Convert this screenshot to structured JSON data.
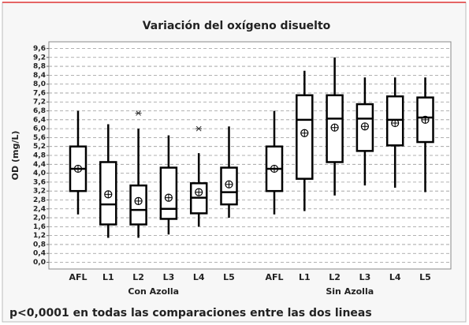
{
  "chart_data": {
    "type": "box",
    "title": "Variación del oxígeno disuelto",
    "ylabel": "OD (mg/L)",
    "footer": "p<0,0001 en todas las comparaciones entre las dos lineas",
    "ylim": [
      -0.3,
      9.9
    ],
    "yticks": [
      {
        "value": 0,
        "label": "0,0"
      },
      {
        "value": 0.4,
        "label": "0,4"
      },
      {
        "value": 0.8,
        "label": "0,8"
      },
      {
        "value": 1.2,
        "label": "1,2"
      },
      {
        "value": 1.6,
        "label": "1,6"
      },
      {
        "value": 2,
        "label": "2,0"
      },
      {
        "value": 2.4,
        "label": "2,4"
      },
      {
        "value": 2.8,
        "label": "2,8"
      },
      {
        "value": 3.2,
        "label": "3,2"
      },
      {
        "value": 3.6,
        "label": "3,6"
      },
      {
        "value": 4,
        "label": "4,0"
      },
      {
        "value": 4.4,
        "label": "4,4"
      },
      {
        "value": 4.8,
        "label": "4,8"
      },
      {
        "value": 5.2,
        "label": "5,2"
      },
      {
        "value": 5.6,
        "label": "5,6"
      },
      {
        "value": 6,
        "label": "6,0"
      },
      {
        "value": 6.4,
        "label": "6,4"
      },
      {
        "value": 6.8,
        "label": "6,8"
      },
      {
        "value": 7.2,
        "label": "7,2"
      },
      {
        "value": 7.6,
        "label": "7,6"
      },
      {
        "value": 8,
        "label": "8,0"
      },
      {
        "value": 8.4,
        "label": "8,4"
      },
      {
        "value": 8.8,
        "label": "8,8"
      },
      {
        "value": 9.2,
        "label": "9,2"
      },
      {
        "value": 9.6,
        "label": "9,6"
      }
    ],
    "grid": true,
    "color": "#000000",
    "groups": [
      {
        "name": "Con Azolla",
        "categories": [
          "AFL",
          "L1",
          "L2",
          "L3",
          "L4",
          "L5"
        ],
        "boxes": [
          {
            "whislo": 2.15,
            "q1": 3.2,
            "med": 4.2,
            "q3": 5.2,
            "whishi": 6.8,
            "mean": 4.2
          },
          {
            "whislo": 1.1,
            "q1": 1.7,
            "med": 2.6,
            "q3": 4.5,
            "whishi": 6.2,
            "mean": 3.05
          },
          {
            "whislo": 1.1,
            "q1": 1.7,
            "med": 2.35,
            "q3": 3.45,
            "whishi": 6.0,
            "mean": 2.75,
            "outliers": [
              6.7
            ]
          },
          {
            "whislo": 1.25,
            "q1": 1.95,
            "med": 2.4,
            "q3": 4.25,
            "whishi": 5.7,
            "mean": 2.9
          },
          {
            "whislo": 1.6,
            "q1": 2.2,
            "med": 2.9,
            "q3": 3.55,
            "whishi": 4.9,
            "mean": 3.15,
            "outliers": [
              6.0
            ]
          },
          {
            "whislo": 2.0,
            "q1": 2.6,
            "med": 3.15,
            "q3": 4.25,
            "whishi": 6.1,
            "mean": 3.5
          }
        ]
      },
      {
        "name": "Sin Azolla",
        "categories": [
          "AFL",
          "L1",
          "L2",
          "L3",
          "L4",
          "L5"
        ],
        "boxes": [
          {
            "whislo": 2.15,
            "q1": 3.2,
            "med": 4.2,
            "q3": 5.2,
            "whishi": 6.8,
            "mean": 4.2
          },
          {
            "whislo": 2.3,
            "q1": 3.75,
            "med": 6.4,
            "q3": 7.5,
            "whishi": 8.6,
            "mean": 5.8
          },
          {
            "whislo": 3.0,
            "q1": 4.5,
            "med": 6.45,
            "q3": 7.5,
            "whishi": 9.2,
            "mean": 6.05
          },
          {
            "whislo": 3.45,
            "q1": 5.0,
            "med": 6.45,
            "q3": 7.1,
            "whishi": 8.3,
            "mean": 6.1
          },
          {
            "whislo": 3.35,
            "q1": 5.25,
            "med": 6.4,
            "q3": 7.45,
            "whishi": 8.3,
            "mean": 6.25
          },
          {
            "whislo": 3.15,
            "q1": 5.4,
            "med": 6.5,
            "q3": 7.4,
            "whishi": 8.3,
            "mean": 6.4
          }
        ]
      }
    ]
  }
}
